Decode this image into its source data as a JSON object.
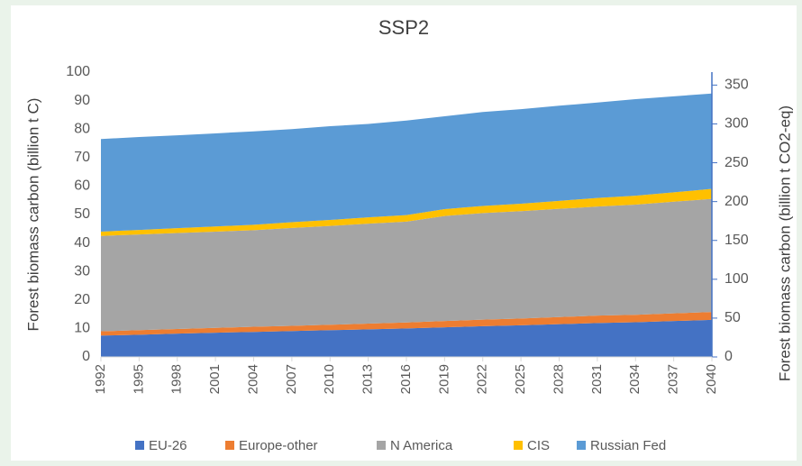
{
  "chart_data": {
    "type": "stacked-area",
    "title": "SSP2",
    "y_label": "Forest biomass carbon (billion t C)",
    "y2_label": "Forest biomass carbon (billion t CO2-eq)",
    "x": [
      1992,
      1995,
      1998,
      2001,
      2004,
      2007,
      2010,
      2013,
      2016,
      2019,
      2022,
      2025,
      2028,
      2031,
      2034,
      2037,
      2040
    ],
    "xlim": [
      1992,
      2040
    ],
    "xticks": [
      1992,
      1995,
      1998,
      2001,
      2004,
      2007,
      2010,
      2013,
      2016,
      2019,
      2022,
      2025,
      2028,
      2031,
      2034,
      2037,
      2040
    ],
    "ylim": [
      0,
      100
    ],
    "yticks": [
      0,
      10,
      20,
      30,
      40,
      50,
      60,
      70,
      80,
      90,
      100
    ],
    "y2lim": [
      0,
      366.7
    ],
    "y2ticks": [
      0,
      50,
      100,
      150,
      200,
      250,
      300,
      350
    ],
    "legend": "bottom",
    "series": [
      {
        "name": "EU-26",
        "color": "#4472c4",
        "values": [
          7.5,
          7.8,
          8.2,
          8.5,
          8.8,
          9.1,
          9.4,
          9.7,
          10,
          10.4,
          10.8,
          11.1,
          11.5,
          11.9,
          12.2,
          12.6,
          13
        ]
      },
      {
        "name": "Europe-other",
        "color": "#ed7d31",
        "values": [
          1.5,
          1.6,
          1.6,
          1.7,
          1.8,
          1.8,
          1.9,
          2,
          2.1,
          2.2,
          2.3,
          2.4,
          2.5,
          2.6,
          2.6,
          2.7,
          2.8
        ]
      },
      {
        "name": "N America",
        "color": "#a5a5a5",
        "values": [
          33.5,
          33.6,
          33.7,
          33.8,
          33.9,
          34.4,
          34.7,
          35.1,
          35.4,
          36.9,
          37.4,
          37.7,
          38,
          38.3,
          38.7,
          39.2,
          39.7
        ]
      },
      {
        "name": "CIS",
        "color": "#ffc000",
        "values": [
          1.5,
          1.6,
          1.7,
          1.8,
          1.9,
          2,
          2.1,
          2.2,
          2.3,
          2.4,
          2.5,
          2.6,
          2.8,
          3,
          3.1,
          3.3,
          3.5
        ]
      },
      {
        "name": "Russian Fed",
        "color": "#5b9bd5",
        "values": [
          32.5,
          32.6,
          32.6,
          32.7,
          32.8,
          32.7,
          32.9,
          32.8,
          33.2,
          32.6,
          33,
          33.2,
          33.4,
          33.5,
          33.9,
          33.7,
          33.5
        ]
      }
    ]
  }
}
